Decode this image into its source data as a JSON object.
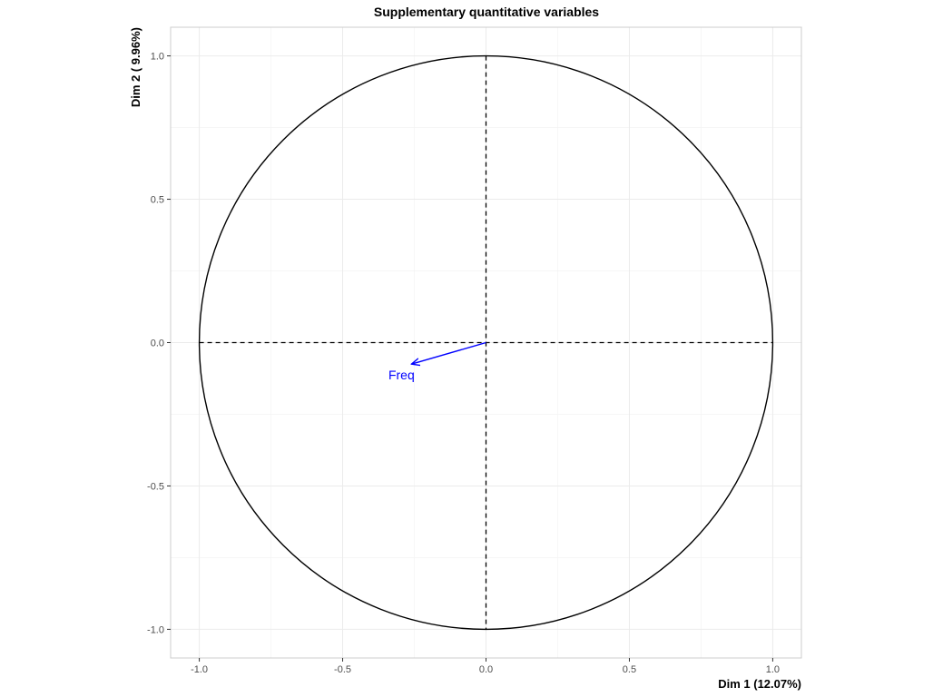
{
  "chart_data": {
    "type": "scatter",
    "subtype": "correlation-circle",
    "title": "Supplementary quantitative variables",
    "xlabel": "Dim 1 (12.07%)",
    "ylabel": "Dim 2 ( 9.96%)",
    "xlim": [
      -1.1,
      1.1
    ],
    "ylim": [
      -1.1,
      1.1
    ],
    "x_ticks": [
      -1.0,
      -0.5,
      0.0,
      0.5,
      1.0
    ],
    "y_ticks": [
      -1.0,
      -0.5,
      0.0,
      0.5,
      1.0
    ],
    "x_tick_labels": [
      "-1.0",
      "-0.5",
      "0.0",
      "0.5",
      "1.0"
    ],
    "y_tick_labels": [
      "-1.0",
      "-0.5",
      "0.0",
      "0.5",
      "1.0"
    ],
    "grid": true,
    "unit_circle": true,
    "reference_lines": "dashed",
    "variables": [
      {
        "name": "Freq",
        "x": -0.26,
        "y": -0.075,
        "color": "#0000ff"
      }
    ]
  }
}
